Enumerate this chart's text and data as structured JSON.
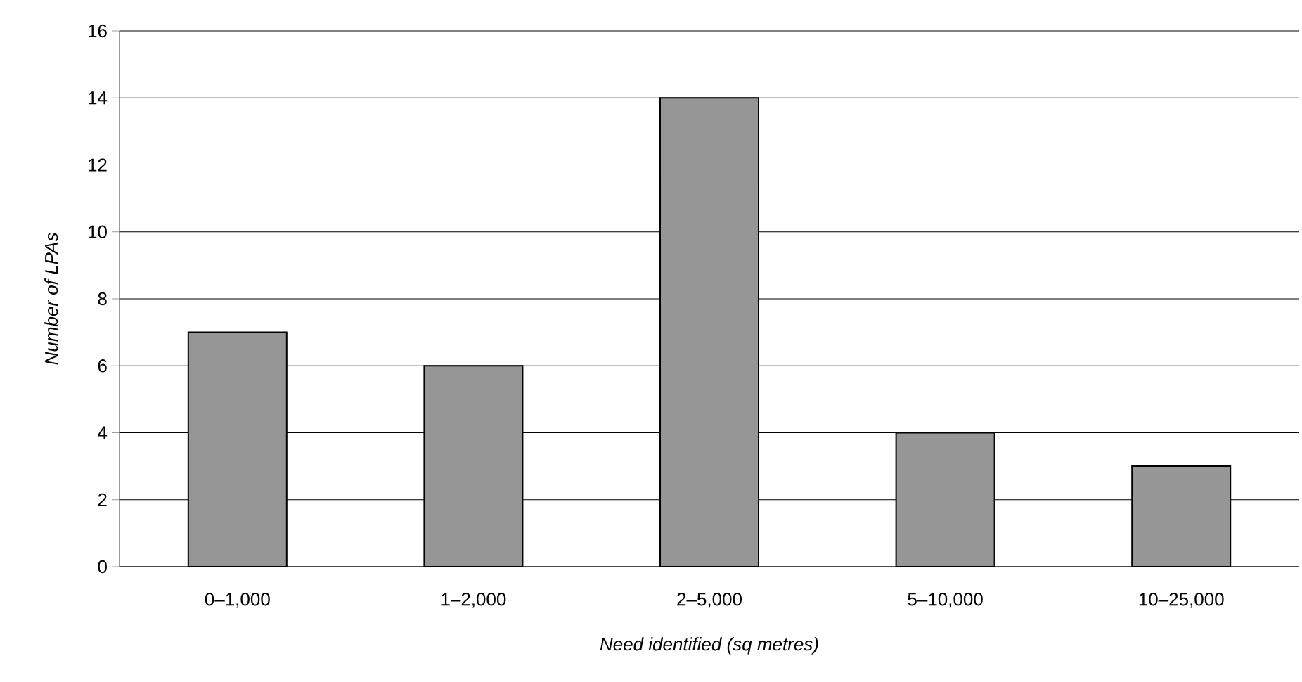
{
  "chart_data": {
    "type": "bar",
    "xlabel": "Need identified (sq metres)",
    "ylabel": "Number of LPAs",
    "categories": [
      "0–1,000",
      "1–2,000",
      "2–5,000",
      "5–10,000",
      "10–25,000"
    ],
    "values": [
      7,
      6,
      14,
      4,
      3
    ],
    "color": "#969696",
    "ylim": [
      0,
      16
    ],
    "yticks": [
      0,
      2,
      4,
      6,
      8,
      10,
      12,
      14,
      16
    ],
    "grid": "y"
  }
}
